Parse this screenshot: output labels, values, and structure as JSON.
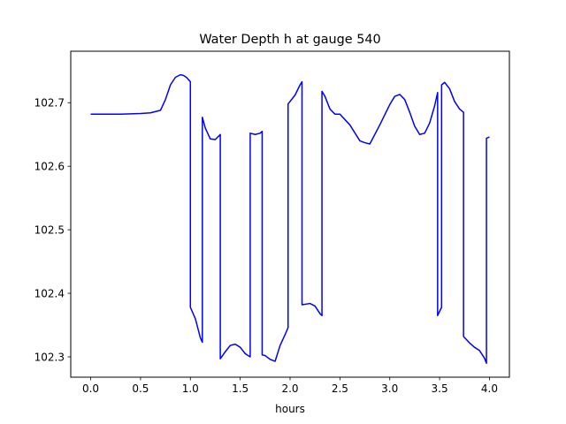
{
  "chart_data": {
    "type": "line",
    "title": "Water Depth h at gauge 540",
    "xlabel": "hours",
    "ylabel": "",
    "xlim": [
      -0.2,
      4.2
    ],
    "ylim": [
      102.268,
      102.781
    ],
    "x_ticks": [
      0.0,
      0.5,
      1.0,
      1.5,
      2.0,
      2.5,
      3.0,
      3.5,
      4.0
    ],
    "x_tick_labels": [
      "0.0",
      "0.5",
      "1.0",
      "1.5",
      "2.0",
      "2.5",
      "3.0",
      "3.5",
      "4.0"
    ],
    "y_ticks": [
      102.3,
      102.4,
      102.5,
      102.6,
      102.7
    ],
    "y_tick_labels": [
      "102.3",
      "102.4",
      "102.5",
      "102.6",
      "102.7"
    ],
    "grid": false,
    "legend": "none",
    "series": [
      {
        "color": "#0000ff",
        "x": [
          0.0,
          0.3,
          0.5,
          0.6,
          0.7,
          0.75,
          0.8,
          0.85,
          0.9,
          0.93,
          0.96,
          1.0,
          1.0,
          1.05,
          1.1,
          1.12,
          1.12,
          1.15,
          1.2,
          1.25,
          1.3,
          1.3,
          1.35,
          1.4,
          1.45,
          1.5,
          1.55,
          1.6,
          1.6,
          1.65,
          1.7,
          1.72,
          1.72,
          1.75,
          1.8,
          1.85,
          1.9,
          1.95,
          1.98,
          1.98,
          2.05,
          2.1,
          2.12,
          2.12,
          2.2,
          2.25,
          2.3,
          2.32,
          2.32,
          2.35,
          2.4,
          2.45,
          2.5,
          2.6,
          2.7,
          2.75,
          2.8,
          2.9,
          3.0,
          3.05,
          3.1,
          3.15,
          3.2,
          3.25,
          3.3,
          3.35,
          3.4,
          3.45,
          3.48,
          3.48,
          3.52,
          3.52,
          3.55,
          3.6,
          3.65,
          3.7,
          3.74,
          3.74,
          3.8,
          3.85,
          3.9,
          3.95,
          3.97,
          3.97,
          4.0
        ],
        "y": [
          102.682,
          102.682,
          102.683,
          102.684,
          102.688,
          102.705,
          102.728,
          102.74,
          102.744,
          102.743,
          102.74,
          102.733,
          102.378,
          102.36,
          102.33,
          102.323,
          102.677,
          102.66,
          102.643,
          102.642,
          102.65,
          102.297,
          102.308,
          102.318,
          102.32,
          102.315,
          102.305,
          102.3,
          102.652,
          102.65,
          102.652,
          102.655,
          102.303,
          102.302,
          102.296,
          102.293,
          102.318,
          102.335,
          102.346,
          102.698,
          102.712,
          102.728,
          102.733,
          102.382,
          102.384,
          102.38,
          102.368,
          102.365,
          102.718,
          102.71,
          102.69,
          102.682,
          102.682,
          102.665,
          102.64,
          102.637,
          102.635,
          102.665,
          102.697,
          102.71,
          102.713,
          102.705,
          102.685,
          102.663,
          102.65,
          102.652,
          102.668,
          102.695,
          102.716,
          102.365,
          102.378,
          102.728,
          102.732,
          102.722,
          102.702,
          102.69,
          102.685,
          102.332,
          102.322,
          102.315,
          102.31,
          102.298,
          102.29,
          102.644,
          102.646
        ]
      }
    ]
  }
}
